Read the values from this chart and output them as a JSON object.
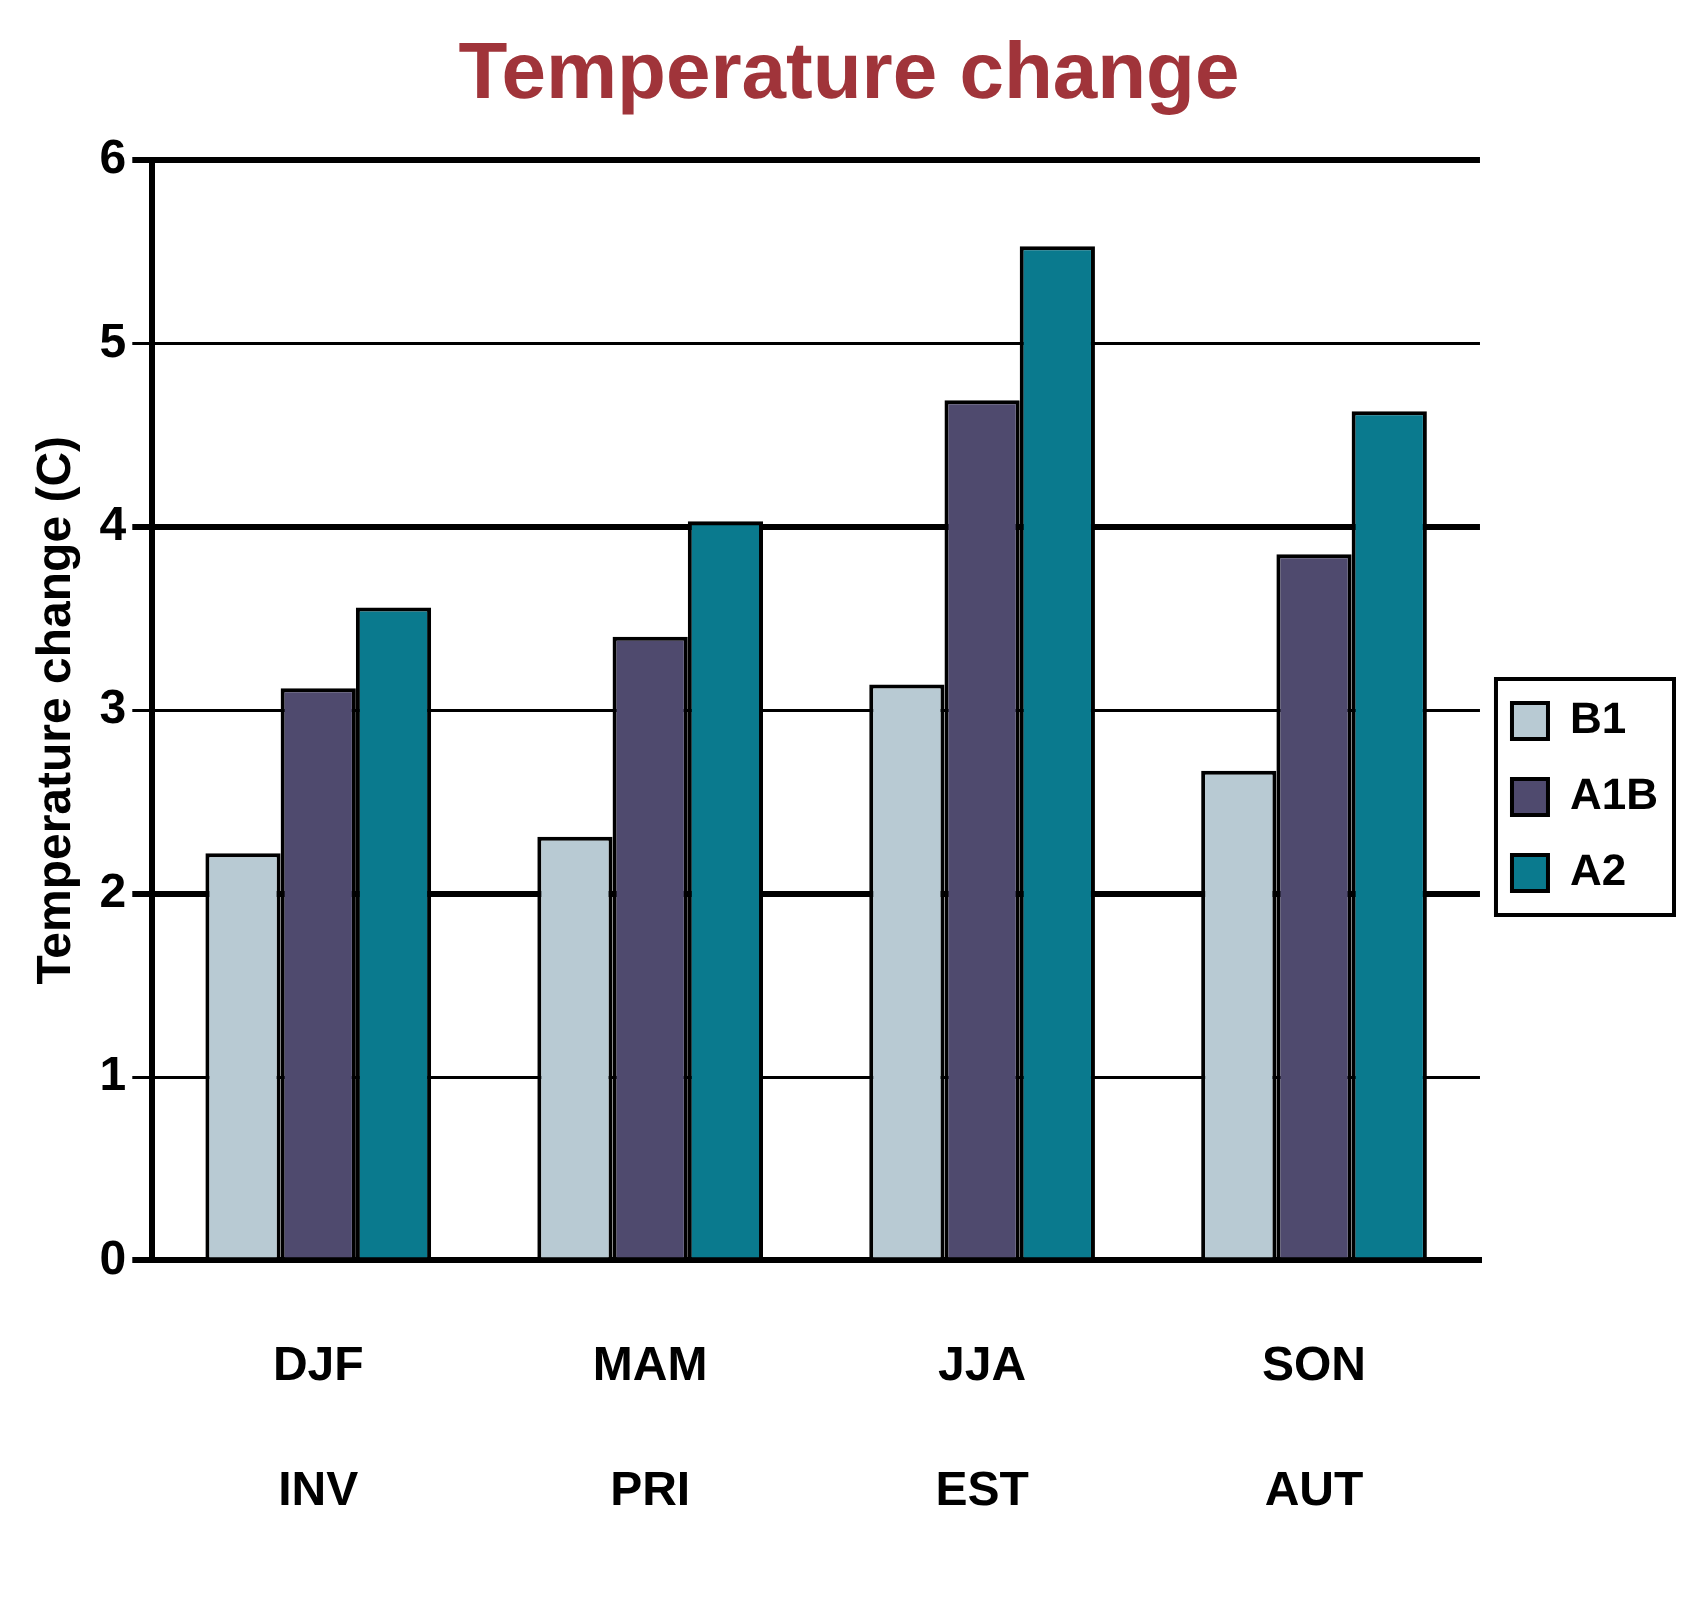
{
  "chart_data": {
    "type": "bar",
    "title": "Temperature change",
    "ylabel": "Temperature change (C)",
    "categories": [
      "DJF\nINV",
      "MAM\nPRI",
      "JJA\nEST",
      "SON\nAUT"
    ],
    "series": [
      {
        "name": "B1",
        "color": "#b8cad3",
        "values": [
          2.22,
          2.31,
          3.14,
          2.67
        ]
      },
      {
        "name": "A1B",
        "color": "#4f4a6e",
        "values": [
          3.12,
          3.4,
          4.69,
          3.85
        ]
      },
      {
        "name": "A2",
        "color": "#0a7a8e",
        "values": [
          3.56,
          4.03,
          5.53,
          4.63
        ]
      }
    ],
    "ylim": [
      0,
      6
    ],
    "yticks": [
      0,
      1,
      2,
      3,
      4,
      5,
      6
    ],
    "grid": "y",
    "legend": "right"
  }
}
